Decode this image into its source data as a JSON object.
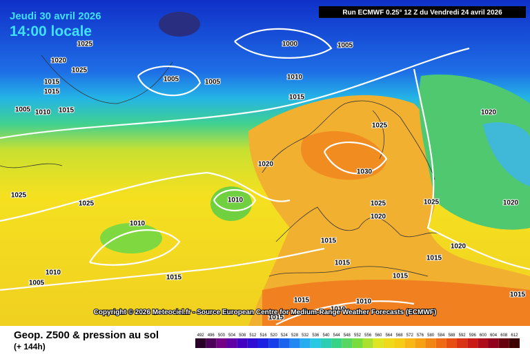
{
  "header": {
    "date": "Jeudi 30 avril 2026",
    "time": "14:00 locale",
    "run": "Run ECMWF 0.25° 12 Z du Vendredi 24 avril 2026"
  },
  "copyright": "Copyright © 2026 Meteociel.fr - Source European Centre for Medium-Range Weather Forecasts (ECMWF)",
  "isobar_labels": [
    1025,
    1020,
    1025,
    1015,
    1015,
    1005,
    1010,
    1015,
    1005,
    1005,
    1000,
    1005,
    1010,
    1015,
    1020,
    1025,
    1020,
    1030,
    1025,
    1025,
    1010,
    1010,
    1025,
    1025,
    1020,
    1020,
    1015,
    1020,
    1015,
    1015,
    1010,
    1015,
    1005,
    1015,
    1015,
    1015,
    1010,
    1015,
    1010
  ],
  "legend": {
    "title": "Geop. Z500 & pression au sol",
    "lead": "(+ 144h)",
    "scale": [
      492,
      496,
      500,
      504,
      508,
      512,
      516,
      520,
      524,
      528,
      532,
      536,
      540,
      544,
      548,
      552,
      556,
      560,
      564,
      568,
      572,
      576,
      580,
      584,
      588,
      592,
      596,
      600,
      604,
      608,
      612
    ]
  }
}
